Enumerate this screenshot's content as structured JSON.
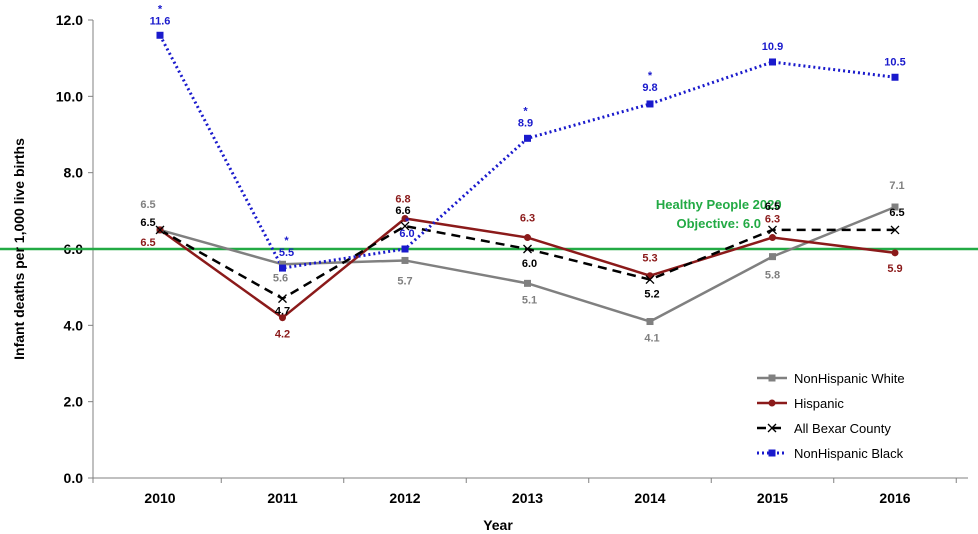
{
  "chart_data": {
    "type": "line",
    "title": "",
    "xlabel": "Year",
    "ylabel": "Infant deaths per 1,000 live births",
    "ylim": [
      0,
      12
    ],
    "yticks": [
      "0.0",
      "2.0",
      "4.0",
      "6.0",
      "8.0",
      "10.0",
      "12.0"
    ],
    "categories": [
      "2010",
      "2011",
      "2012",
      "2013",
      "2014",
      "2015",
      "2016"
    ],
    "grid": false,
    "legend_position": "bottom-right",
    "reference_line": {
      "value": 6.0,
      "label_line1": "Healthy People 2020",
      "label_line2": "Objective: 6.0",
      "color": "#22aa44"
    },
    "series": [
      {
        "name": "NonHispanic White",
        "color": "#808080",
        "style": "solid",
        "marker": "square",
        "values": [
          6.5,
          5.6,
          5.7,
          5.1,
          4.1,
          5.8,
          7.1
        ],
        "labels": [
          "6.5",
          "5.6",
          "5.7",
          "5.1",
          "4.1",
          "5.8",
          "7.1"
        ]
      },
      {
        "name": "Hispanic",
        "color": "#8b1a1a",
        "style": "solid",
        "marker": "circle",
        "values": [
          6.5,
          4.2,
          6.8,
          6.3,
          5.3,
          6.3,
          5.9
        ],
        "labels": [
          "6.5",
          "4.2",
          "6.8",
          "6.3",
          "5.3",
          "6.3",
          "5.9"
        ]
      },
      {
        "name": "All Bexar County",
        "color": "#000000",
        "style": "dashed",
        "marker": "x",
        "values": [
          6.5,
          4.7,
          6.6,
          6.0,
          5.2,
          6.5,
          6.5
        ],
        "labels": [
          "6.5",
          "4.7",
          "6.6",
          "6.0",
          "5.2",
          "6.5",
          "6.5"
        ]
      },
      {
        "name": "NonHispanic Black",
        "color": "#1a1acc",
        "style": "dotted",
        "marker": "square",
        "values": [
          11.6,
          5.5,
          6.0,
          8.9,
          9.8,
          10.9,
          10.5
        ],
        "labels": [
          "11.6",
          "5.5",
          "6.0",
          "8.9",
          "9.8",
          "10.9",
          "10.5"
        ],
        "asterisks": [
          true,
          true,
          true,
          true,
          true,
          false,
          false
        ]
      }
    ],
    "asterisk_symbol": "*"
  }
}
